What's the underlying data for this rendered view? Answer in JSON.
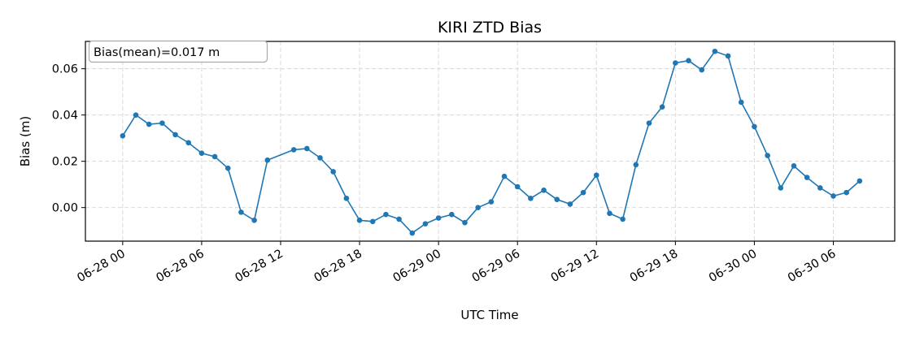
{
  "chart_data": {
    "type": "line",
    "title": "KIRI ZTD Bias",
    "xlabel": "UTC Time",
    "ylabel": "Bias (m)",
    "annotation": "Bias(mean)=0.017 m",
    "grid": true,
    "color": "#1f77b4",
    "x_ticks": [
      "06-28 00",
      "06-28 06",
      "06-28 12",
      "06-28 18",
      "06-29 00",
      "06-29 06",
      "06-29 12",
      "06-29 18",
      "06-30 00",
      "06-30 06"
    ],
    "y_ticks": [
      "0.00",
      "0.02",
      "0.04",
      "0.06"
    ],
    "xlim": [
      "06-27 21:10",
      "06-30 10:40"
    ],
    "ylim": [
      -0.0145,
      0.0718
    ],
    "series": [
      {
        "x": [
          "06-28 00",
          "06-28 01",
          "06-28 02",
          "06-28 03",
          "06-28 04",
          "06-28 05",
          "06-28 06",
          "06-28 07",
          "06-28 08",
          "06-28 09",
          "06-28 10",
          "06-28 11",
          "06-28 13",
          "06-28 14",
          "06-28 15",
          "06-28 16",
          "06-28 17",
          "06-28 18",
          "06-28 19",
          "06-28 20",
          "06-28 21",
          "06-28 22",
          "06-28 23",
          "06-29 00",
          "06-29 01",
          "06-29 02",
          "06-29 03",
          "06-29 04",
          "06-29 05",
          "06-29 06",
          "06-29 07",
          "06-29 08",
          "06-29 09",
          "06-29 10",
          "06-29 11",
          "06-29 12",
          "06-29 13",
          "06-29 14",
          "06-29 15",
          "06-29 16",
          "06-29 17",
          "06-29 18",
          "06-29 19",
          "06-29 20",
          "06-29 21",
          "06-29 22",
          "06-29 23",
          "06-30 00",
          "06-30 01",
          "06-30 02",
          "06-30 03",
          "06-30 04",
          "06-30 05",
          "06-30 06",
          "06-30 07",
          "06-30 08"
        ],
        "values": [
          0.031,
          0.04,
          0.036,
          0.0365,
          0.0315,
          0.028,
          0.0235,
          0.022,
          0.017,
          -0.002,
          -0.0055,
          0.0205,
          0.025,
          0.0255,
          0.0215,
          0.0155,
          0.004,
          -0.0055,
          -0.006,
          -0.003,
          -0.005,
          -0.011,
          -0.007,
          -0.0045,
          -0.003,
          -0.0065,
          0.0,
          0.0025,
          0.0135,
          0.009,
          0.004,
          0.0075,
          0.0035,
          0.0015,
          0.0065,
          0.014,
          -0.0025,
          -0.005,
          0.0185,
          0.0365,
          0.0435,
          0.0625,
          0.0635,
          0.0595,
          0.0675,
          0.0655,
          0.0455,
          0.035,
          0.0225,
          0.0085,
          0.018,
          0.013,
          0.0085,
          0.005,
          0.0065,
          0.0115
        ]
      }
    ]
  }
}
